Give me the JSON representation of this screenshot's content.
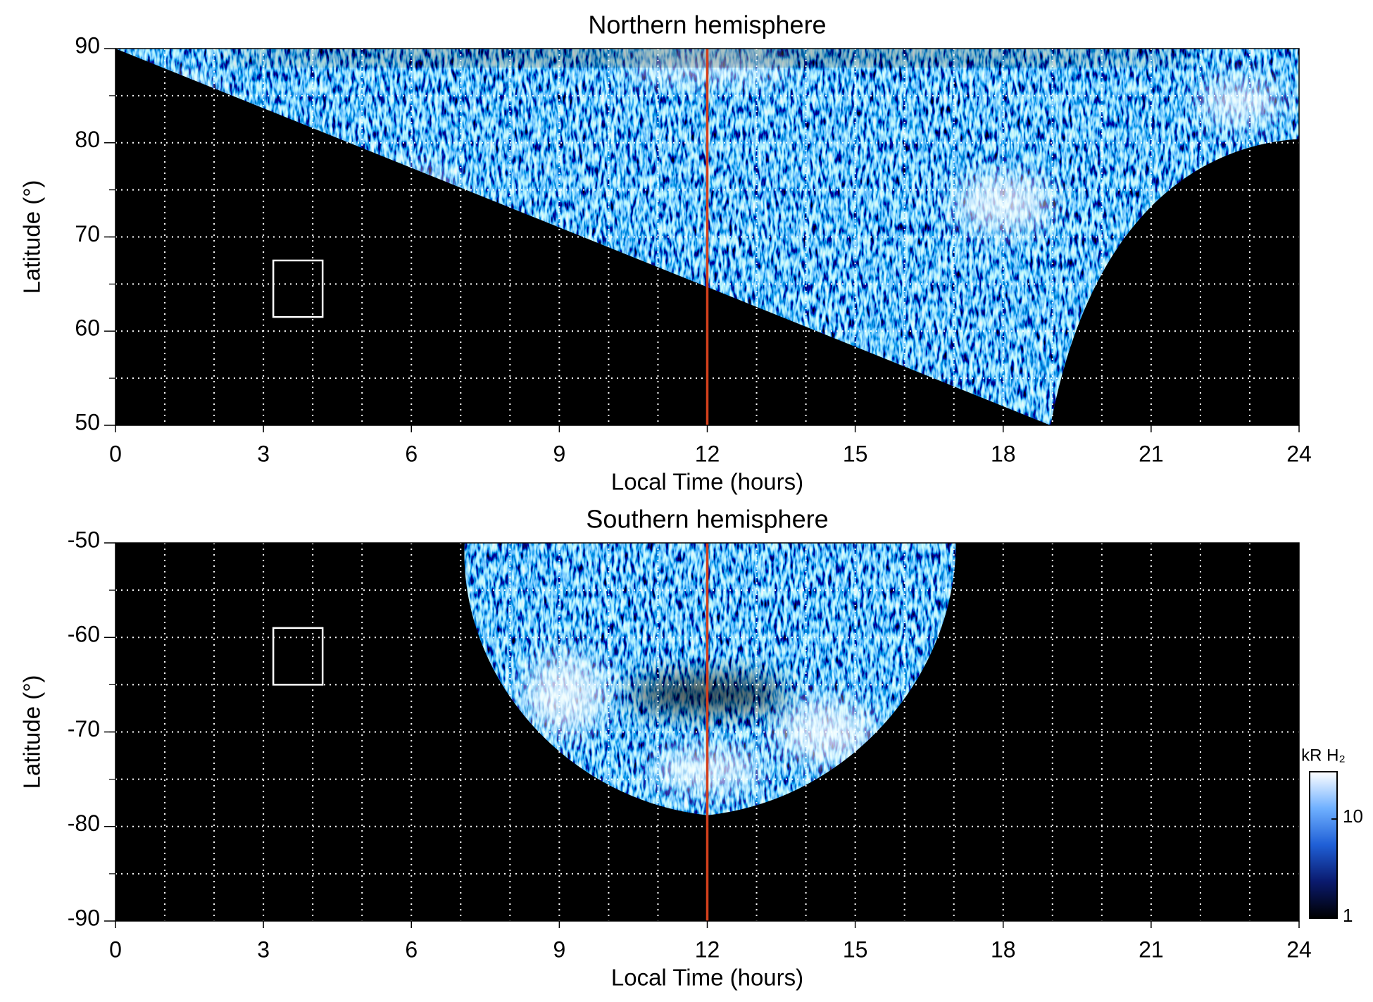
{
  "chart_data": [
    {
      "type": "heatmap",
      "title": "Northern hemisphere",
      "xlabel": "Local Time (hours)",
      "ylabel": "Latitude (°)",
      "xlim": [
        0,
        24
      ],
      "ylim": [
        50,
        90
      ],
      "xticks": [
        0,
        3,
        6,
        9,
        12,
        15,
        18,
        21,
        24
      ],
      "yticks": [
        50,
        60,
        70,
        80,
        90
      ],
      "xgrid": [
        1,
        2,
        3,
        4,
        5,
        6,
        7,
        8,
        9,
        10,
        11,
        12,
        13,
        14,
        15,
        16,
        17,
        18,
        19,
        20,
        21,
        22,
        23
      ],
      "ygrid": [
        55,
        60,
        65,
        70,
        75,
        80,
        85
      ],
      "vline": {
        "x": 12,
        "color": "#d2401c"
      },
      "boxes": [
        {
          "x": [
            3.2,
            4.2
          ],
          "y": [
            61.5,
            67.5
          ],
          "color": "#ffffff"
        }
      ],
      "colors": [
        "#000000",
        "#0a1a6e",
        "#1f5fd6",
        "#6fb0ff",
        "#ffffff"
      ]
    },
    {
      "type": "heatmap",
      "title": "Southern hemisphere",
      "xlabel": "Local Time (hours)",
      "ylabel": "Latitude (°)",
      "xlim": [
        0,
        24
      ],
      "ylim": [
        -90,
        -50
      ],
      "xticks": [
        0,
        3,
        6,
        9,
        12,
        15,
        18,
        21,
        24
      ],
      "yticks": [
        -90,
        -80,
        -70,
        -60,
        -50
      ],
      "xgrid": [
        1,
        2,
        3,
        4,
        5,
        6,
        7,
        8,
        9,
        10,
        11,
        12,
        13,
        14,
        15,
        16,
        17,
        18,
        19,
        20,
        21,
        22,
        23
      ],
      "ygrid": [
        -85,
        -80,
        -75,
        -70,
        -65,
        -60,
        -55
      ],
      "vline": {
        "x": 12,
        "color": "#d2401c"
      },
      "boxes": [
        {
          "x": [
            3.2,
            4.2
          ],
          "y": [
            -65,
            -59
          ],
          "color": "#ffffff"
        }
      ],
      "colors": [
        "#000000",
        "#0a1a6e",
        "#1f5fd6",
        "#6fb0ff",
        "#ffffff"
      ],
      "colorbar": {
        "label": "kR H₂",
        "lim": [
          1,
          30
        ],
        "ticks": [
          1,
          10
        ],
        "log": true
      }
    }
  ]
}
